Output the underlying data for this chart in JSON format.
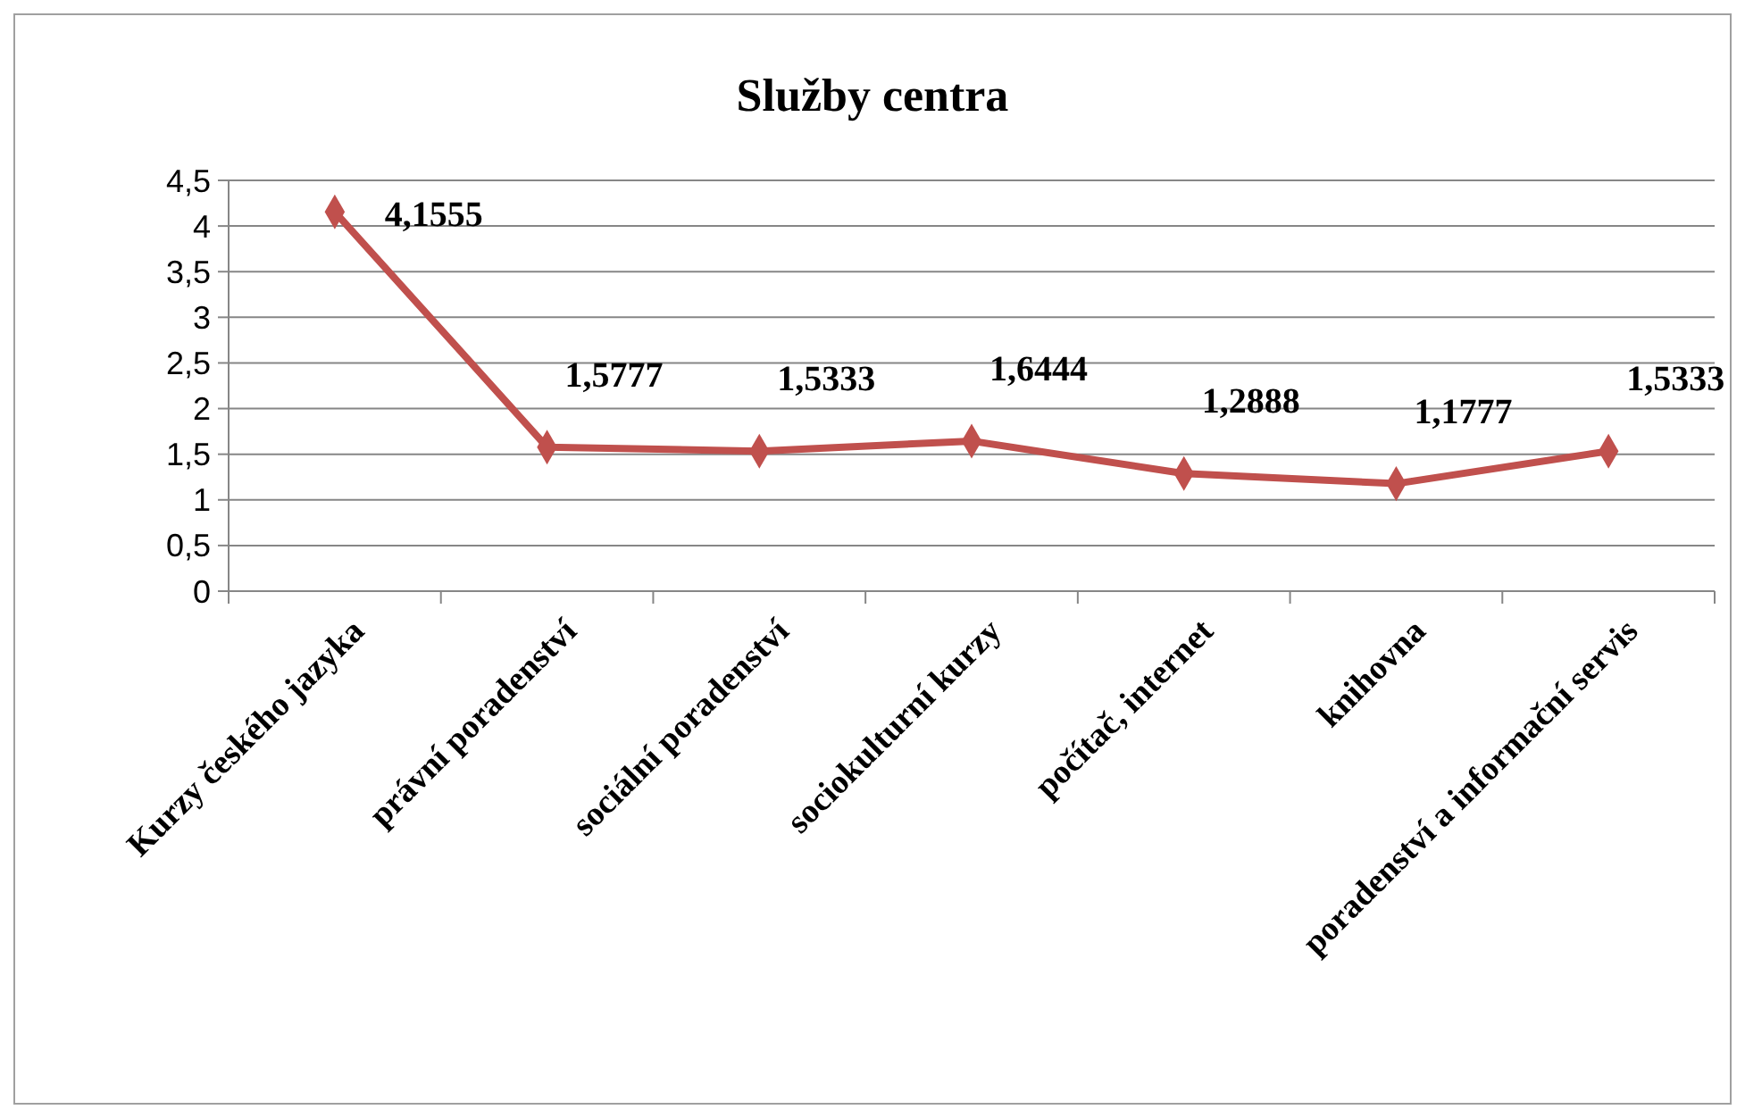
{
  "chart_data": {
    "type": "line",
    "title": "Služby centra",
    "categories": [
      "Kurzy českého jazyka",
      "právní poradenství",
      "sociální poradenství",
      "sociokulturní kurzy",
      "počítač, internet",
      "knihovna",
      "poradenství a informační servis"
    ],
    "series": [
      {
        "color": "#c0504d",
        "values": [
          4.1555,
          1.5777,
          1.5333,
          1.6444,
          1.2888,
          1.1777,
          1.5333
        ],
        "value_labels": [
          "4,1555",
          "1,5777",
          "1,5333",
          "1,6444",
          "1,2888",
          "1,1777",
          "1,5333"
        ]
      }
    ],
    "ylim": [
      0,
      4.5
    ],
    "yticks": [
      {
        "value": 0,
        "label": "0"
      },
      {
        "value": 0.5,
        "label": "0,5"
      },
      {
        "value": 1,
        "label": "1"
      },
      {
        "value": 1.5,
        "label": "1,5"
      },
      {
        "value": 2,
        "label": "2"
      },
      {
        "value": 2.5,
        "label": "2,5"
      },
      {
        "value": 3,
        "label": "3"
      },
      {
        "value": 3.5,
        "label": "3,5"
      },
      {
        "value": 4,
        "label": "4"
      },
      {
        "value": 4.5,
        "label": "4,5"
      }
    ],
    "grid": "y",
    "marker": "diamond",
    "line_style": "solid"
  }
}
